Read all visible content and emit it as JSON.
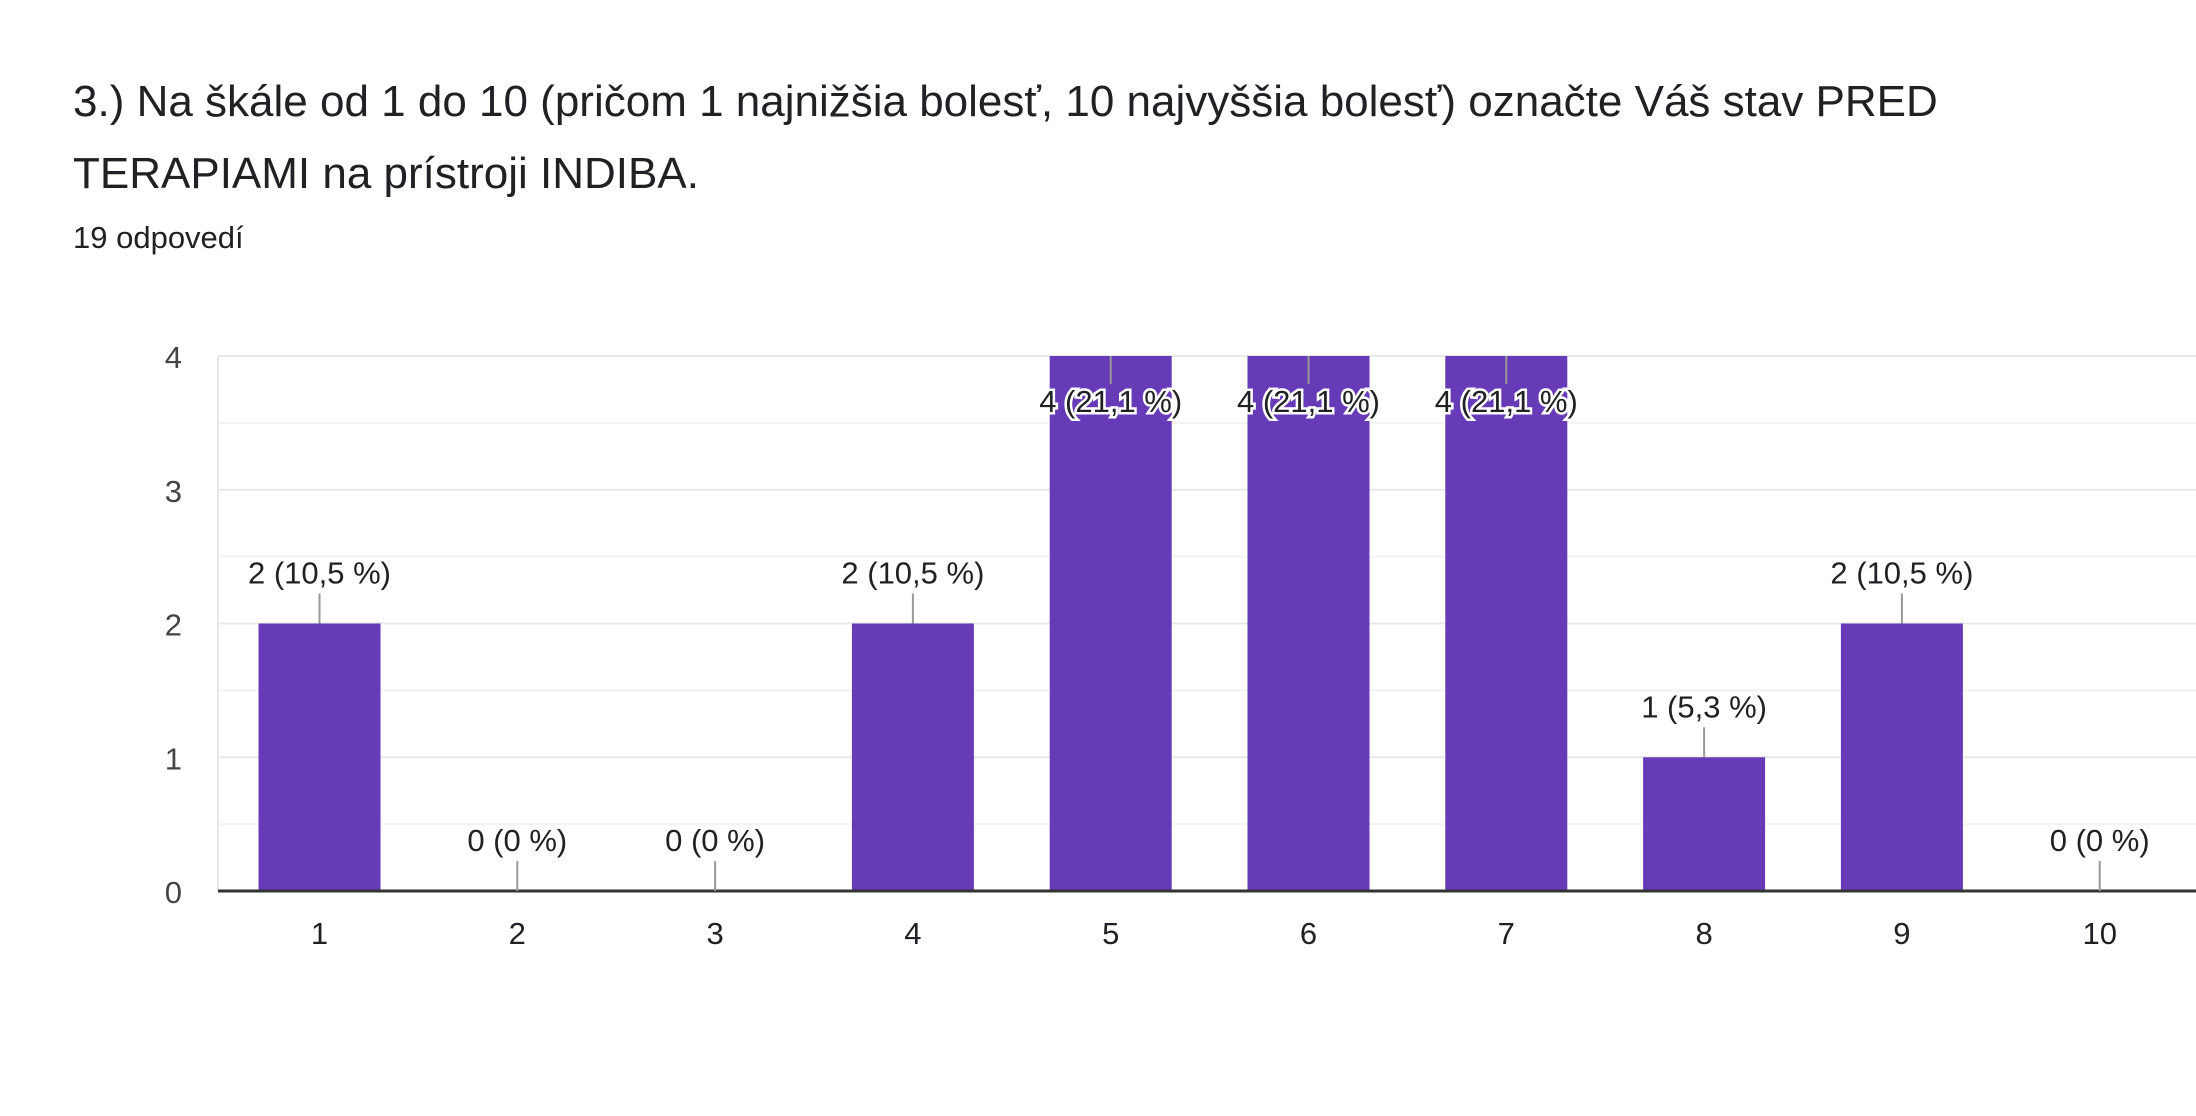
{
  "question": {
    "title": "3.) Na škále od 1 do 10 (pričom 1 najnižšia bolesť, 10 najvyššia bolesť) označte Váš stav PRED TERAPIAMI na prístroji INDIBA.",
    "responses": "19 odpovedí"
  },
  "colors": {
    "bar": "#673ab7",
    "grid": "#e8e8e8",
    "minor_grid": "#f3f3f3",
    "axis": "#333333",
    "tick_text": "#444444",
    "label_text": "#202124",
    "leader": "#999999"
  },
  "chart_data": {
    "type": "bar",
    "categories": [
      "1",
      "2",
      "3",
      "4",
      "5",
      "6",
      "7",
      "8",
      "9",
      "10"
    ],
    "values": [
      2,
      0,
      0,
      2,
      4,
      4,
      4,
      1,
      2,
      0
    ],
    "data_labels": [
      "2 (10,5 %)",
      "0 (0 %)",
      "0 (0 %)",
      "2 (10,5 %)",
      "4 (21,1 %)",
      "4 (21,1 %)",
      "4 (21,1 %)",
      "1 (5,3 %)",
      "2 (10,5 %)",
      "0 (0 %)"
    ],
    "y_ticks": [
      "0",
      "1",
      "2",
      "3",
      "4"
    ],
    "ylim": [
      0,
      4
    ],
    "grid": true,
    "title": "",
    "xlabel": "",
    "ylabel": ""
  }
}
